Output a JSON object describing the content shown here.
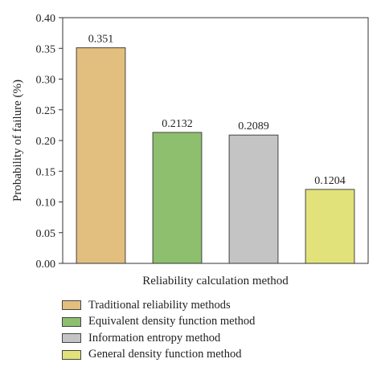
{
  "chart_data": {
    "type": "bar",
    "categories": [
      "Traditional reliability methods",
      "Equivalent density function method",
      "Information entropy method",
      "General density function method"
    ],
    "values": [
      0.351,
      0.2132,
      0.2089,
      0.1204
    ],
    "value_labels": [
      "0.351",
      "0.2132",
      "0.2089",
      "0.1204"
    ],
    "colors": [
      "#E2BF7E",
      "#8DBF6E",
      "#C4C4C4",
      "#E2E27A"
    ],
    "xlabel": "Reliability calculation method",
    "ylabel": "Probability of failure (%)",
    "ylim": [
      0,
      0.4
    ],
    "yticks": [
      "0.00",
      "0.05",
      "0.10",
      "0.15",
      "0.20",
      "0.25",
      "0.30",
      "0.35",
      "0.40"
    ],
    "grid": false,
    "legend_position": "bottom"
  }
}
